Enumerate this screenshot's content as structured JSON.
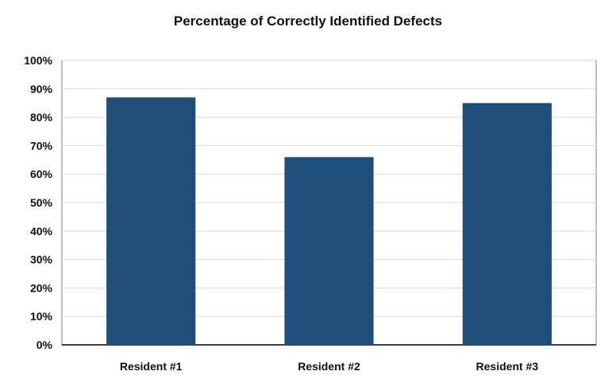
{
  "chart_data": {
    "type": "bar",
    "title": "Percentage of Correctly Identified Defects",
    "xlabel": "",
    "ylabel": "",
    "categories": [
      "Resident #1",
      "Resident #2",
      "Resident #3"
    ],
    "values": [
      87,
      66,
      85
    ],
    "ylim": [
      0,
      100
    ],
    "yticks": [
      0,
      10,
      20,
      30,
      40,
      50,
      60,
      70,
      80,
      90,
      100
    ],
    "ytick_labels": [
      "0%",
      "10%",
      "20%",
      "30%",
      "40%",
      "50%",
      "60%",
      "70%",
      "80%",
      "90%",
      "100%"
    ],
    "grid": true,
    "legend": "none",
    "bar_color": "#1f4e79"
  }
}
